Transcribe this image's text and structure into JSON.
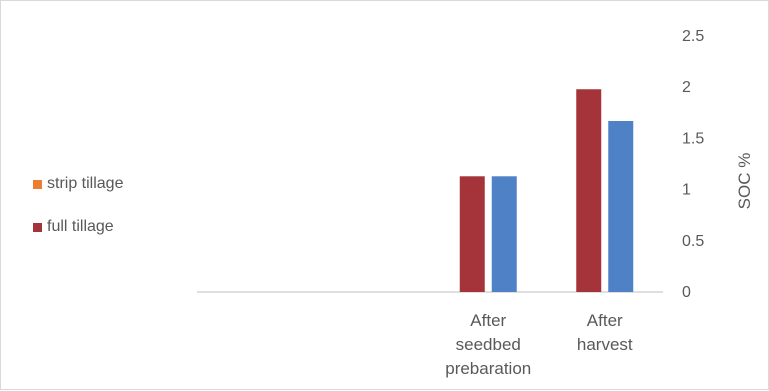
{
  "chart_data": {
    "type": "bar",
    "categories": [
      "",
      "",
      "After seedbed prebaration",
      "After harvest"
    ],
    "category_lines": [
      [],
      [],
      [
        "After",
        "seedbed",
        "prebaration"
      ],
      [
        "After",
        "harvest"
      ]
    ],
    "series": [
      {
        "name": "strip tillage",
        "color": "#ed7d31",
        "values": [
          0,
          0,
          0,
          0
        ]
      },
      {
        "name": "full tillage",
        "color": "#a5333a",
        "values": [
          0,
          0,
          1.13,
          1.98
        ]
      },
      {
        "name": "",
        "color": "#4f81c7",
        "values": [
          0,
          0,
          1.13,
          1.67
        ]
      }
    ],
    "legend_series": [
      "strip tillage",
      "full tillage"
    ],
    "ylabel": "SOC %",
    "ylim": [
      0,
      2.5
    ],
    "yticks": [
      0,
      0.5,
      1,
      1.5,
      2,
      2.5
    ],
    "ytick_labels": [
      "0",
      "0.5",
      "1",
      "1.5",
      "2",
      "2.5"
    ],
    "y_axis_position": "right",
    "grid": false,
    "legend_position": "left"
  }
}
